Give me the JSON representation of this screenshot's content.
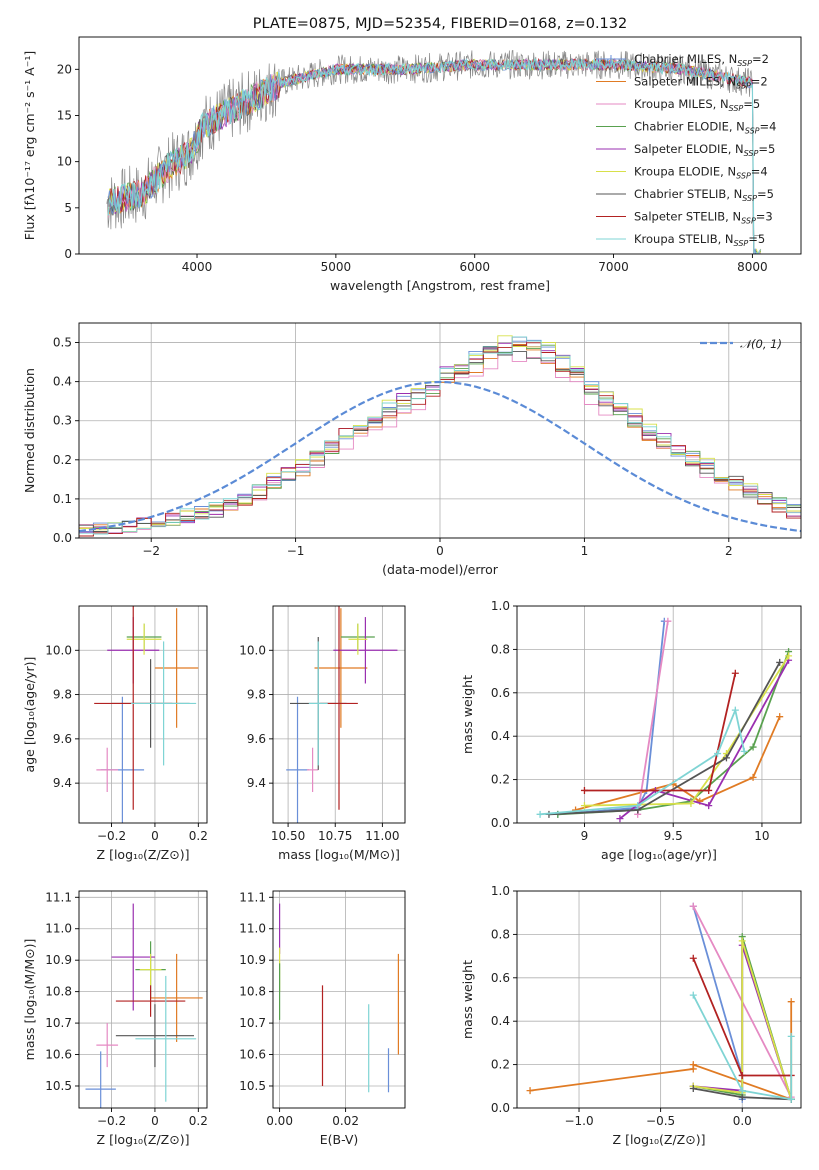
{
  "figure_title": "PLATE=0875, MJD=52354, FIBERID=0168, z=0.132",
  "colors": [
    "#6a8fd8",
    "#e07b24",
    "#e58ac3",
    "#59a14f",
    "#9a2fb0",
    "#d8e04a",
    "#555555",
    "#b22222",
    "#7fd4d4"
  ],
  "chart_data": [
    {
      "id": "spectrum",
      "type": "line",
      "title": "PLATE=0875, MJD=52354, FIBERID=0168, z=0.132",
      "xlabel": "wavelength [Angstrom, rest frame]",
      "ylabel": "Flux [fλ10⁻¹⁷ erg cm⁻² s⁻¹ A⁻¹]",
      "xlim": [
        3150,
        8350
      ],
      "ylim": [
        0,
        23.5
      ],
      "xticks": [
        4000,
        5000,
        6000,
        7000,
        8000
      ],
      "yticks": [
        0,
        5,
        10,
        15,
        20
      ],
      "legend": "top-right",
      "series": [
        {
          "name": "Chabrier MILES, N_SSP=2"
        },
        {
          "name": "Salpeter MILES, N_SSP=2"
        },
        {
          "name": "Kroupa MILES, N_SSP=5"
        },
        {
          "name": "Chabrier ELODIE, N_SSP=4"
        },
        {
          "name": "Salpeter ELODIE, N_SSP=5"
        },
        {
          "name": "Kroupa ELODIE, N_SSP=4"
        },
        {
          "name": "Chabrier STELIB, N_SSP=5"
        },
        {
          "name": "Salpeter STELIB, N_SSP=3"
        },
        {
          "name": "Kroupa STELIB, N_SSP=5"
        }
      ],
      "continuum": {
        "x": [
          3350,
          3600,
          3800,
          3950,
          4050,
          4300,
          4600,
          5000,
          5500,
          6000,
          6500,
          7000,
          7500,
          8000
        ],
        "y": [
          5.5,
          6.5,
          9.5,
          11,
          14,
          16,
          18.5,
          20,
          20,
          20.5,
          20.5,
          20.5,
          20,
          18.5
        ]
      }
    },
    {
      "id": "residuals",
      "type": "line",
      "xlabel": "(data-model)/error",
      "ylabel": "Normed distribution",
      "xlim": [
        -2.5,
        2.5
      ],
      "ylim": [
        0,
        0.55
      ],
      "xticks": [
        -2,
        -1,
        0,
        1,
        2
      ],
      "yticks": [
        0.0,
        0.1,
        0.2,
        0.3,
        0.4,
        0.5
      ],
      "grid": true,
      "legend": "top-right",
      "legend_label": "𝒩(0, 1)",
      "bin_width": 0.1,
      "bin_start": -2.5,
      "hist_base": [
        0.02,
        0.022,
        0.025,
        0.03,
        0.035,
        0.045,
        0.05,
        0.055,
        0.06,
        0.07,
        0.085,
        0.1,
        0.12,
        0.14,
        0.16,
        0.18,
        0.2,
        0.23,
        0.26,
        0.28,
        0.3,
        0.32,
        0.34,
        0.36,
        0.38,
        0.41,
        0.43,
        0.45,
        0.47,
        0.48,
        0.49,
        0.48,
        0.47,
        0.44,
        0.41,
        0.38,
        0.35,
        0.33,
        0.3,
        0.27,
        0.24,
        0.22,
        0.2,
        0.18,
        0.16,
        0.14,
        0.12,
        0.1,
        0.085,
        0.07
      ],
      "gaussian": {
        "mu": 0,
        "sigma": 1
      }
    },
    {
      "id": "age-vs-Z",
      "type": "scatter",
      "xlabel": "Z [log₁₀(Z/Z⊙)]",
      "ylabel": "age  [log₁₀(age/yr)]",
      "xlim": [
        -0.35,
        0.24
      ],
      "ylim": [
        9.22,
        10.2
      ],
      "xticks": [
        -0.2,
        0.0,
        0.2
      ],
      "yticks": [
        9.4,
        9.6,
        9.8,
        10.0
      ],
      "grid": true,
      "points": [
        {
          "x": -0.15,
          "y": 9.46,
          "xerr": 0.1,
          "yerr": 0.33,
          "c": 0
        },
        {
          "x": 0.1,
          "y": 9.92,
          "xerr": 0.1,
          "yerr": 0.27,
          "c": 1
        },
        {
          "x": -0.22,
          "y": 9.46,
          "xerr": 0.05,
          "yerr": 0.1,
          "c": 2
        },
        {
          "x": -0.05,
          "y": 10.06,
          "xerr": 0.08,
          "yerr": 0.06,
          "c": 3
        },
        {
          "x": -0.1,
          "y": 10.0,
          "xerr": 0.12,
          "yerr": 0.15,
          "c": 4
        },
        {
          "x": -0.05,
          "y": 10.05,
          "xerr": 0.08,
          "yerr": 0.07,
          "c": 5
        },
        {
          "x": -0.02,
          "y": 9.76,
          "xerr": 0.18,
          "yerr": 0.2,
          "c": 6
        },
        {
          "x": -0.1,
          "y": 9.76,
          "xerr": 0.18,
          "yerr": 0.48,
          "c": 7
        },
        {
          "x": 0.04,
          "y": 9.76,
          "xerr": 0.15,
          "yerr": 0.28,
          "c": 8
        }
      ]
    },
    {
      "id": "age-vs-mass",
      "type": "scatter",
      "xlabel": "mass [log₁₀(M/M⊙)]",
      "ylabel": "",
      "xlim": [
        10.42,
        11.12
      ],
      "ylim": [
        9.22,
        10.2
      ],
      "xticks": [
        10.5,
        10.75,
        11.0
      ],
      "xticklabels": [
        "10.50",
        "10.75",
        "11.00"
      ],
      "yticks": [
        9.4,
        9.6,
        9.8,
        10.0
      ],
      "grid": true,
      "points": [
        {
          "x": 10.55,
          "y": 9.46,
          "xerr": 0.06,
          "yerr": 0.33,
          "c": 0
        },
        {
          "x": 10.78,
          "y": 9.92,
          "xerr": 0.14,
          "yerr": 0.27,
          "c": 1
        },
        {
          "x": 10.63,
          "y": 9.46,
          "xerr": 0.03,
          "yerr": 0.1,
          "c": 2
        },
        {
          "x": 10.87,
          "y": 10.06,
          "xerr": 0.09,
          "yerr": 0.06,
          "c": 3
        },
        {
          "x": 10.91,
          "y": 10.0,
          "xerr": 0.17,
          "yerr": 0.15,
          "c": 4
        },
        {
          "x": 10.87,
          "y": 10.05,
          "xerr": 0.05,
          "yerr": 0.07,
          "c": 5
        },
        {
          "x": 10.66,
          "y": 9.76,
          "xerr": 0.15,
          "yerr": 0.3,
          "c": 6
        },
        {
          "x": 10.77,
          "y": 9.76,
          "xerr": 0.1,
          "yerr": 0.48,
          "c": 7
        },
        {
          "x": 10.66,
          "y": 9.76,
          "xerr": 0.05,
          "yerr": 0.28,
          "c": 8
        }
      ]
    },
    {
      "id": "weight-vs-age",
      "type": "line",
      "xlabel": "age  [log₁₀(age/yr)]",
      "ylabel": "mass weight",
      "xlim": [
        8.62,
        10.22
      ],
      "ylim": [
        0,
        1
      ],
      "xticks": [
        9.0,
        9.5,
        10.0
      ],
      "yticks": [
        0.0,
        0.2,
        0.4,
        0.6,
        0.8,
        1.0
      ],
      "grid": true,
      "series": [
        {
          "c": 0,
          "x": [
            8.85,
            9.3,
            9.35,
            9.45
          ],
          "y": [
            0.04,
            0.07,
            0.15,
            0.93
          ]
        },
        {
          "c": 1,
          "x": [
            8.95,
            9.5,
            9.65,
            9.95,
            10.1
          ],
          "y": [
            0.06,
            0.18,
            0.1,
            0.21,
            0.49
          ]
        },
        {
          "c": 2,
          "x": [
            9.3,
            9.47
          ],
          "y": [
            0.04,
            0.93
          ]
        },
        {
          "c": 3,
          "x": [
            8.85,
            9.3,
            9.6,
            9.95,
            10.15
          ],
          "y": [
            0.04,
            0.06,
            0.1,
            0.35,
            0.79
          ]
        },
        {
          "c": 4,
          "x": [
            9.2,
            9.4,
            9.7,
            10.15
          ],
          "y": [
            0.02,
            0.15,
            0.08,
            0.75
          ]
        },
        {
          "c": 5,
          "x": [
            9.0,
            9.6,
            9.8,
            10.15
          ],
          "y": [
            0.08,
            0.09,
            0.32,
            0.77
          ]
        },
        {
          "c": 6,
          "x": [
            8.8,
            9.3,
            9.8,
            10.1
          ],
          "y": [
            0.04,
            0.06,
            0.3,
            0.74
          ]
        },
        {
          "c": 7,
          "x": [
            9.0,
            9.7,
            9.85
          ],
          "y": [
            0.15,
            0.15,
            0.69
          ]
        },
        {
          "c": 8,
          "x": [
            8.75,
            9.3,
            9.75,
            9.85,
            9.9
          ],
          "y": [
            0.04,
            0.08,
            0.32,
            0.52,
            0.33
          ]
        }
      ]
    },
    {
      "id": "mass-vs-Z",
      "type": "scatter",
      "xlabel": "Z [log₁₀(Z/Z⊙)]",
      "ylabel": "mass [log₁₀(M/M⊙)]",
      "xlim": [
        -0.35,
        0.24
      ],
      "ylim": [
        10.43,
        11.12
      ],
      "xticks": [
        -0.2,
        0.0,
        0.2
      ],
      "yticks": [
        10.5,
        10.6,
        10.7,
        10.8,
        10.9,
        11.0,
        11.1
      ],
      "grid": true,
      "points": [
        {
          "x": -0.25,
          "y": 10.49,
          "xerr": 0.07,
          "yerr": 0.12,
          "c": 0
        },
        {
          "x": 0.1,
          "y": 10.78,
          "xerr": 0.12,
          "yerr": 0.14,
          "c": 1
        },
        {
          "x": -0.22,
          "y": 10.63,
          "xerr": 0.05,
          "yerr": 0.07,
          "c": 2
        },
        {
          "x": -0.02,
          "y": 10.87,
          "xerr": 0.07,
          "yerr": 0.09,
          "c": 3
        },
        {
          "x": -0.1,
          "y": 10.91,
          "xerr": 0.1,
          "yerr": 0.17,
          "c": 4
        },
        {
          "x": -0.02,
          "y": 10.87,
          "xerr": 0.05,
          "yerr": 0.05,
          "c": 5
        },
        {
          "x": 0.0,
          "y": 10.66,
          "xerr": 0.18,
          "yerr": 0.1,
          "c": 6
        },
        {
          "x": -0.02,
          "y": 10.77,
          "xerr": 0.16,
          "yerr": 0.05,
          "c": 7
        },
        {
          "x": 0.05,
          "y": 10.65,
          "xerr": 0.14,
          "yerr": 0.2,
          "c": 8
        }
      ]
    },
    {
      "id": "mass-vs-ebv",
      "type": "scatter",
      "xlabel": "E(B-V)",
      "ylabel": "",
      "xlim": [
        -0.002,
        0.038
      ],
      "ylim": [
        10.43,
        11.12
      ],
      "xticks": [
        0.0,
        0.02
      ],
      "xticklabels": [
        "0.00",
        "0.02"
      ],
      "yticks": [
        10.5,
        10.6,
        10.7,
        10.8,
        10.9,
        11.0,
        11.1
      ],
      "grid": true,
      "points": [
        {
          "x": 0.0,
          "y": 11.0,
          "yerr": 0.08,
          "c": 4
        },
        {
          "x": 0.0,
          "y": 10.87,
          "yerr": 0.07,
          "c": 5
        },
        {
          "x": 0.0,
          "y": 10.8,
          "yerr": 0.09,
          "c": 3
        },
        {
          "x": 0.013,
          "y": 10.66,
          "yerr": 0.16,
          "c": 7
        },
        {
          "x": 0.027,
          "y": 10.62,
          "yerr": 0.14,
          "c": 8
        },
        {
          "x": 0.033,
          "y": 10.55,
          "yerr": 0.07,
          "c": 0
        },
        {
          "x": 0.036,
          "y": 10.76,
          "yerr": 0.16,
          "c": 1
        }
      ]
    },
    {
      "id": "weight-vs-Z",
      "type": "line",
      "xlabel": "Z [log₁₀(Z/Z⊙)]",
      "ylabel": "mass weight",
      "xlim": [
        -1.38,
        0.36
      ],
      "ylim": [
        0,
        1
      ],
      "xticks": [
        -1.0,
        -0.5,
        0.0
      ],
      "xticklabels": [
        "−1.0",
        "−0.5",
        "0.0"
      ],
      "yticks": [
        0.0,
        0.2,
        0.4,
        0.6,
        0.8,
        1.0
      ],
      "grid": true,
      "series": [
        {
          "c": 0,
          "x": [
            -0.3,
            0.0,
            0.0
          ],
          "y": [
            0.93,
            0.15,
            0.04
          ]
        },
        {
          "c": 1,
          "x": [
            -1.3,
            -0.3,
            -0.3,
            0.3,
            0.3
          ],
          "y": [
            0.08,
            0.18,
            0.2,
            0.04,
            0.49
          ]
        },
        {
          "c": 2,
          "x": [
            -0.3,
            0.3,
            0.3
          ],
          "y": [
            0.93,
            0.05,
            0.04
          ]
        },
        {
          "c": 3,
          "x": [
            -0.3,
            0.0,
            0.0,
            0.3
          ],
          "y": [
            0.1,
            0.06,
            0.79,
            0.04
          ]
        },
        {
          "c": 4,
          "x": [
            -0.3,
            0.0,
            0.0,
            0.3
          ],
          "y": [
            0.1,
            0.08,
            0.75,
            0.04
          ]
        },
        {
          "c": 5,
          "x": [
            -0.3,
            0.0,
            0.0,
            0.3
          ],
          "y": [
            0.1,
            0.07,
            0.77,
            0.04
          ]
        },
        {
          "c": 6,
          "x": [
            -0.3,
            0.0,
            0.3
          ],
          "y": [
            0.09,
            0.05,
            0.04
          ]
        },
        {
          "c": 7,
          "x": [
            -0.3,
            0.0,
            0.3
          ],
          "y": [
            0.69,
            0.15,
            0.15
          ]
        },
        {
          "c": 8,
          "x": [
            -0.3,
            0.0,
            0.3,
            0.3
          ],
          "y": [
            0.52,
            0.08,
            0.04,
            0.33
          ]
        }
      ]
    }
  ]
}
